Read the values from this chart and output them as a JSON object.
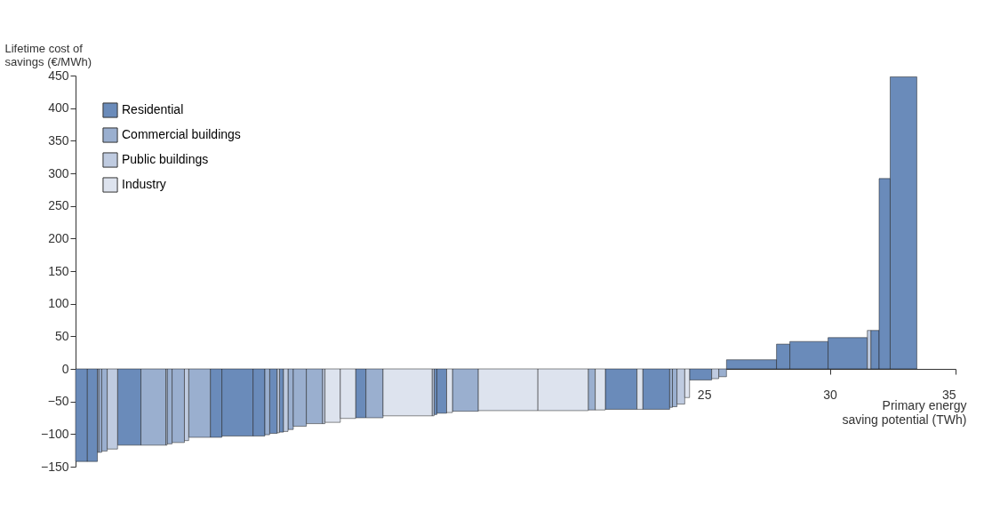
{
  "chart_data": {
    "type": "histogram",
    "ylabel": "Lifetime cost of\nsavings (€/MWh)",
    "xlabel": "Primary energy\nsaving potential (TWh)",
    "bins": [
      0,
      0.47,
      0.87,
      0.93,
      1.04,
      1.26,
      1.67,
      2.6,
      3.59,
      3.64,
      3.84,
      4.33,
      4.5,
      5.36,
      5.82,
      7.06,
      7.53,
      7.72,
      8.02,
      8.11,
      8.27,
      8.45,
      8.66,
      9.18,
      9.83,
      9.92,
      10.53,
      11.14,
      11.55,
      12.23,
      14.18,
      14.26,
      14.37,
      14.76,
      14.99,
      16.02,
      18.39,
      20.39,
      20.67,
      21.07,
      22.33,
      22.56,
      23.63,
      23.74,
      23.92,
      24.23,
      24.42,
      25.3,
      25.58,
      25.89,
      27.88,
      28.41,
      29.93,
      31.49,
      31.63,
      31.96,
      32.4,
      33.46
    ],
    "series": [
      {
        "name": "Residential",
        "color": "#6a8bba",
        "values": [
          -142,
          -142,
          null,
          null,
          null,
          null,
          -117,
          null,
          null,
          null,
          null,
          null,
          null,
          -105,
          -103,
          -103,
          null,
          -99,
          null,
          -97,
          null,
          null,
          null,
          null,
          null,
          null,
          null,
          -75,
          null,
          null,
          null,
          -70,
          -68,
          null,
          null,
          null,
          null,
          null,
          null,
          -62,
          null,
          -62,
          null,
          null,
          null,
          null,
          -17,
          null,
          null,
          14,
          38,
          42,
          48,
          null,
          59,
          292,
          448
        ]
      },
      {
        "name": "Commercial buildings",
        "color": "#9aafcf",
        "values": [
          null,
          null,
          -128,
          -128,
          -126,
          null,
          null,
          -117,
          null,
          -115,
          -113,
          null,
          -105,
          null,
          null,
          null,
          -101,
          null,
          null,
          null,
          null,
          -93,
          -88,
          -84,
          null,
          null,
          null,
          null,
          -75,
          null,
          null,
          null,
          null,
          null,
          -65,
          null,
          null,
          -63,
          null,
          null,
          null,
          null,
          -59,
          -58,
          null,
          null,
          null,
          null,
          -12,
          null,
          null,
          null,
          null,
          null,
          null,
          null,
          null
        ]
      },
      {
        "name": "Public buildings",
        "color": "#bfcbe0",
        "values": [
          null,
          null,
          null,
          null,
          null,
          -123,
          null,
          null,
          -117,
          null,
          null,
          -110,
          null,
          null,
          null,
          null,
          null,
          null,
          -98,
          null,
          -96,
          null,
          null,
          null,
          -84,
          null,
          null,
          null,
          null,
          null,
          -72,
          null,
          null,
          null,
          null,
          null,
          null,
          null,
          null,
          null,
          null,
          null,
          null,
          null,
          -54,
          null,
          null,
          -15,
          null,
          null,
          null,
          null,
          null,
          59,
          null,
          null,
          null
        ]
      },
      {
        "name": "Industry",
        "color": "#dde3ee",
        "values": [
          null,
          null,
          null,
          null,
          null,
          null,
          null,
          null,
          null,
          null,
          null,
          null,
          null,
          null,
          null,
          null,
          null,
          null,
          null,
          null,
          null,
          null,
          null,
          null,
          null,
          -82,
          -76,
          null,
          null,
          -72,
          null,
          null,
          null,
          -67,
          null,
          -64,
          -64,
          null,
          -63,
          null,
          -62,
          null,
          null,
          null,
          null,
          -44,
          null,
          null,
          null,
          null,
          null,
          null,
          null,
          null,
          null,
          null,
          null
        ]
      }
    ],
    "xlim": [
      0,
      35
    ],
    "xticks": [
      25,
      30,
      35
    ],
    "ylim": [
      -150,
      450
    ],
    "yticks": [
      -150,
      -100,
      -50,
      0,
      50,
      100,
      150,
      200,
      250,
      300,
      350,
      400,
      450
    ],
    "legend": "top left",
    "grid": false
  }
}
